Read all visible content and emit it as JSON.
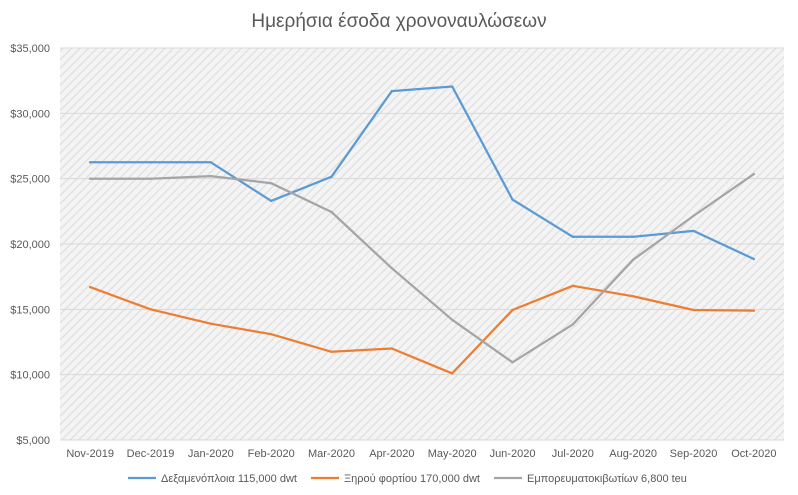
{
  "chart_data": {
    "type": "line",
    "title": "Ημερήσια έσοδα χρονοναυλώσεων",
    "xlabel": "",
    "ylabel": "",
    "categories": [
      "Nov-2019",
      "Dec-2019",
      "Jan-2020",
      "Feb-2020",
      "Mar-2020",
      "Apr-2020",
      "May-2020",
      "Jun-2020",
      "Jul-2020",
      "Aug-2020",
      "Sep-2020",
      "Oct-2020"
    ],
    "ylim": [
      5000,
      35000
    ],
    "yticks": [
      5000,
      10000,
      15000,
      20000,
      25000,
      30000,
      35000
    ],
    "ytick_labels": [
      "$5,000",
      "$10,000",
      "$15,000",
      "$20,000",
      "$25,000",
      "$30,000",
      "$35,000"
    ],
    "grid": "horizontal",
    "plot_background": "hatched",
    "legend_position": "bottom",
    "series": [
      {
        "name": "Δεξαμενόπλοια 115,000 dwt",
        "color": "#5B9BD5",
        "values": [
          26250,
          26250,
          26250,
          23300,
          25150,
          31700,
          32050,
          23400,
          20550,
          20550,
          21000,
          18850
        ]
      },
      {
        "name": "Ξηρού φορτίου 170,000 dwt",
        "color": "#ED7D31",
        "values": [
          16700,
          15000,
          13900,
          13100,
          11750,
          12000,
          10100,
          14950,
          16800,
          16000,
          14950,
          14900
        ]
      },
      {
        "name": "Εμπορευματοκιβωτίων 6,800 teu",
        "color": "#A5A5A5",
        "values": [
          25000,
          25000,
          25200,
          24650,
          22450,
          18150,
          14200,
          10950,
          13850,
          18800,
          22150,
          25350
        ]
      }
    ]
  }
}
